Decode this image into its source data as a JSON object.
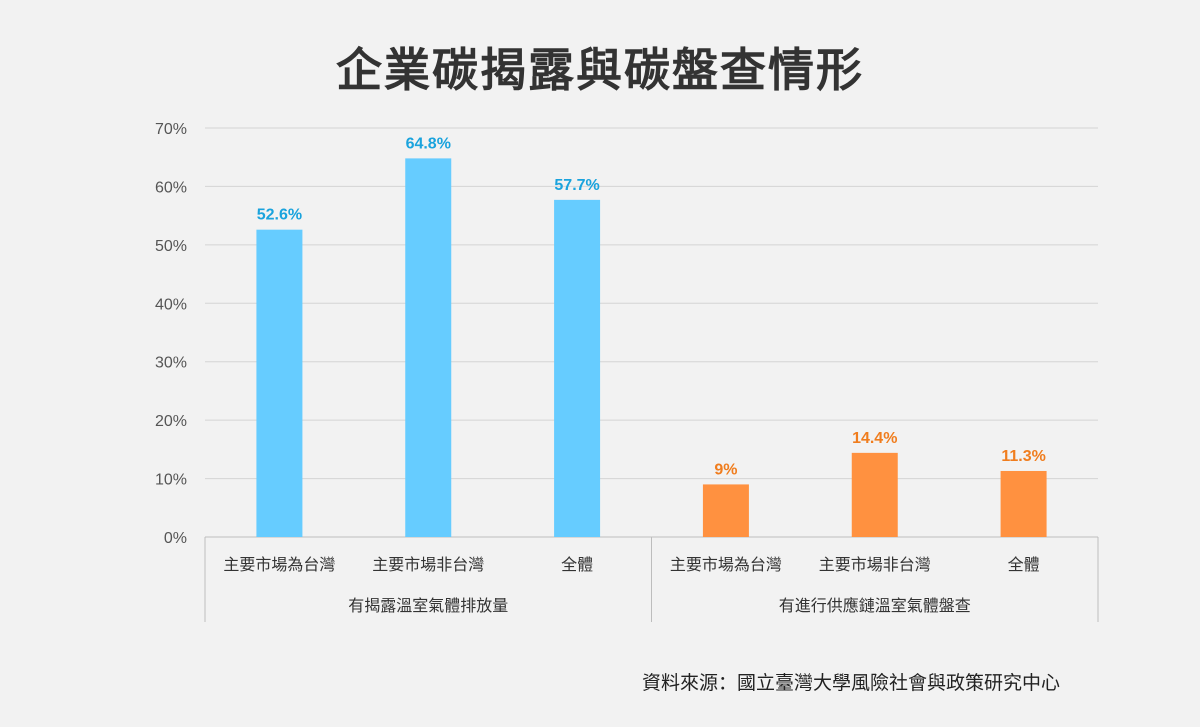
{
  "title": "企業碳揭露與碳盤查情形",
  "source": "資料來源：國立臺灣大學風險社會與政策研究中心",
  "chart_data": {
    "type": "bar",
    "title": "企業碳揭露與碳盤查情形",
    "ylim": [
      0,
      70
    ],
    "yticks": [
      "0%",
      "10%",
      "20%",
      "30%",
      "40%",
      "50%",
      "60%",
      "70%"
    ],
    "grid": true,
    "groups": [
      {
        "label": "有揭露溫室氣體排放量",
        "color": "#66ccff",
        "label_color": "#1aa3dd",
        "categories": [
          "主要市場為台灣",
          "主要市場非台灣",
          "全體"
        ],
        "values": [
          52.6,
          64.8,
          57.7
        ],
        "value_labels": [
          "52.6%",
          "64.8%",
          "57.7%"
        ]
      },
      {
        "label": "有進行供應鏈溫室氣體盤查",
        "color": "#ff9140",
        "label_color": "#f07d1e",
        "categories": [
          "主要市場為台灣",
          "主要市場非台灣",
          "全體"
        ],
        "values": [
          9,
          14.4,
          11.3
        ],
        "value_labels": [
          "9%",
          "14.4%",
          "11.3%"
        ]
      }
    ]
  }
}
